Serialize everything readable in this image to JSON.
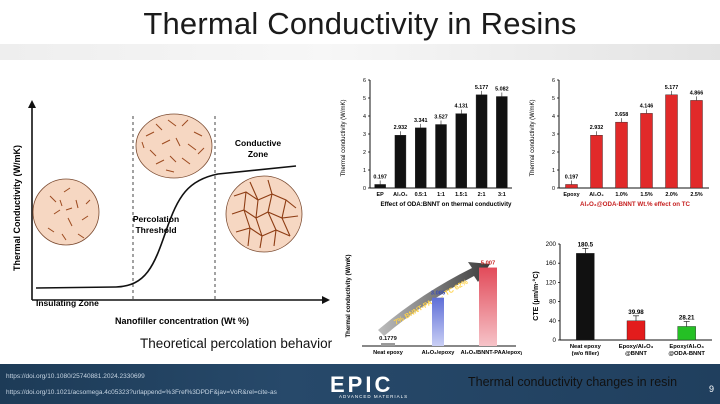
{
  "slide": {
    "title": "Thermal Conductivity in Resins",
    "page_number": "9"
  },
  "percolation_diagram": {
    "ylabel": "Thermal Conductivity (W/mK)",
    "xlabel": "Nanofiller concentration (Wt %)",
    "zone_insulating": "Insulating Zone",
    "zone_percolation_1": "Percolation",
    "zone_percolation_2": "Threshold",
    "zone_conductive_1": "Conductive",
    "zone_conductive_2": "Zone",
    "caption": "Theoretical percolation behavior"
  },
  "chart_ratio": {
    "ylabel": "Thermal conductivity (W/mK)",
    "xlabel": "Effect of ODA:BNNT on thermal conductivity",
    "categories": [
      "EP",
      "Al₂O₃",
      "0.5:1",
      "1:1",
      "1.5:1",
      "2:1",
      "3:1"
    ],
    "values": [
      0.197,
      2.932,
      3.341,
      3.527,
      4.131,
      5.177,
      5.082
    ],
    "labels": [
      "0.197",
      "2.932",
      "3.341",
      "3.527",
      "4.131",
      "5.177",
      "5.082"
    ],
    "yticks": [
      "0",
      "1",
      "2",
      "3",
      "4",
      "5",
      "6"
    ]
  },
  "chart_wt": {
    "ylabel": "Thermal conductivity (W/mK)",
    "xlabel": "Al₂O₃@ODA-BNNT Wt.% effect on TC",
    "categories": [
      "Epoxy",
      "Al₂O₃",
      "1.0%",
      "1.5%",
      "2.0%",
      "2.5%"
    ],
    "values": [
      0.197,
      2.932,
      3.658,
      4.146,
      5.177,
      4.866
    ],
    "labels": [
      "0.197",
      "2.932",
      "3.658",
      "4.146",
      "5.177",
      "4.866"
    ],
    "yticks": [
      "0",
      "1",
      "2",
      "3",
      "4",
      "5",
      "6"
    ]
  },
  "chart_gradient": {
    "ylabel": "Thermal conductivity (W/mK)",
    "categories": [
      "Neat epoxy",
      "Al₂O₃/epoxy",
      "Al₂O₃/BNNT-PAA/epoxy"
    ],
    "values": [
      0.1779,
      3.085,
      5.007
    ],
    "labels": [
      "0.1779",
      "3.085",
      "5.007"
    ],
    "arrow_text": "7% BNNT-PAA → TC 62%"
  },
  "chart_cte": {
    "ylabel": "CTE (μm/m·°C)",
    "categories_line1": [
      "Neat epoxy",
      "Epoxy/Al₂O₃",
      "Epoxy/Al₂O₃"
    ],
    "categories_line2": [
      "(w/o filler)",
      "@BNNT",
      "@ODA-BNNT"
    ],
    "values": [
      180.5,
      39.98,
      28.21
    ],
    "labels": [
      "180.5",
      "39.98",
      "28.21"
    ],
    "yticks": [
      "0",
      "40",
      "80",
      "120",
      "160",
      "200"
    ],
    "caption": "Thermal conductivity changes in resin"
  },
  "footer": {
    "link1": "https://doi.org/10.1080/25740881.2024.2330699",
    "link2": "https://doi.org/10.1021/acsomega.4c05323?urlappend=%3Fref%3DPDF&jav=VoR&rel=cite-as",
    "logo": "EPIC",
    "logo_sub": "ADVANCED MATERIALS"
  },
  "chart_data": [
    {
      "type": "bar",
      "categories": [
        "EP",
        "Al₂O₃",
        "0.5:1",
        "1:1",
        "1.5:1",
        "2:1",
        "3:1"
      ],
      "values": [
        0.197,
        2.932,
        3.341,
        3.527,
        4.131,
        5.177,
        5.082
      ],
      "xlabel": "Effect of ODA:BNNT on thermal conductivity",
      "ylabel": "Thermal conductivity (W/mK)",
      "ylim": [
        0,
        6
      ]
    },
    {
      "type": "bar",
      "categories": [
        "Epoxy",
        "Al₂O₃",
        "1.0%",
        "1.5%",
        "2.0%",
        "2.5%"
      ],
      "values": [
        0.197,
        2.932,
        3.658,
        4.146,
        5.177,
        4.866
      ],
      "xlabel": "Al₂O₃@ODA-BNNT Wt.% effect on TC",
      "ylabel": "Thermal conductivity (W/mK)",
      "ylim": [
        0,
        6
      ]
    },
    {
      "type": "bar",
      "categories": [
        "Neat epoxy",
        "Al₂O₃/epoxy",
        "Al₂O₃/BNNT-PAA/epoxy"
      ],
      "values": [
        0.1779,
        3.085,
        5.007
      ],
      "ylabel": "Thermal conductivity (W/mK)",
      "ylim": [
        0,
        6
      ]
    },
    {
      "type": "bar",
      "categories": [
        "Neat epoxy (w/o filler)",
        "Epoxy/Al₂O₃ @BNNT",
        "Epoxy/Al₂O₃ @ODA-BNNT"
      ],
      "values": [
        180.5,
        39.98,
        28.21
      ],
      "ylabel": "CTE (μm/m·°C)",
      "ylim": [
        0,
        200
      ]
    }
  ]
}
